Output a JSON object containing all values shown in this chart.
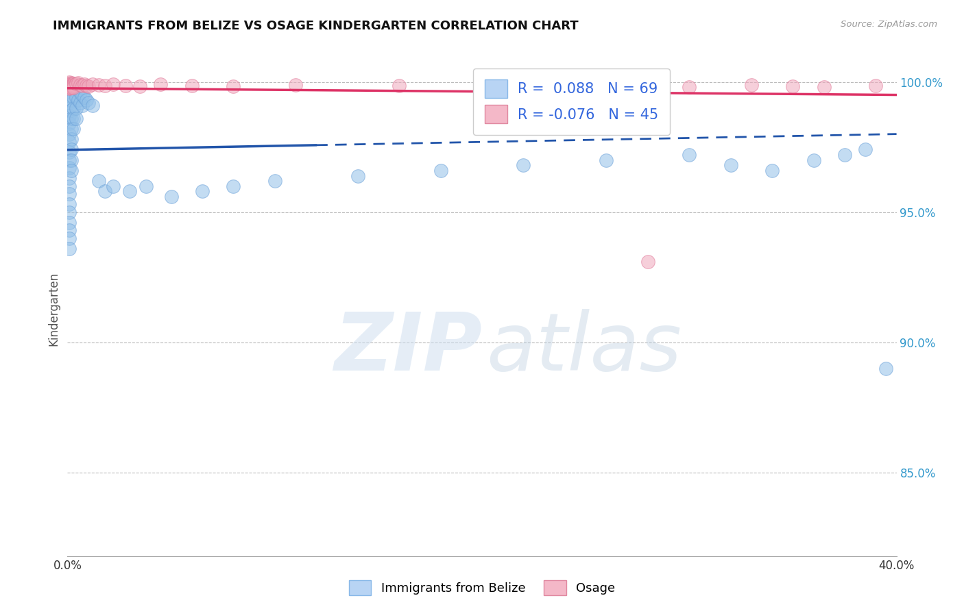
{
  "title": "IMMIGRANTS FROM BELIZE VS OSAGE KINDERGARTEN CORRELATION CHART",
  "source_text": "Source: ZipAtlas.com",
  "ylabel": "Kindergarten",
  "x_min": 0.0,
  "x_max": 0.4,
  "y_min": 0.818,
  "y_max": 1.008,
  "x_tick_positions": [
    0.0,
    0.4
  ],
  "x_tick_labels": [
    "0.0%",
    "40.0%"
  ],
  "y_tick_values": [
    0.85,
    0.9,
    0.95,
    1.0
  ],
  "y_tick_labels": [
    "85.0%",
    "90.0%",
    "95.0%",
    "100.0%"
  ],
  "blue_color": "#92c0e8",
  "blue_edge": "#6aa0d8",
  "pink_color": "#f0a8bc",
  "pink_edge": "#e07898",
  "blue_line_color": "#2255aa",
  "pink_line_color": "#dd3366",
  "blue_r": 0.088,
  "blue_n": 69,
  "pink_r": -0.076,
  "pink_n": 45,
  "legend_r_color": "#3366dd",
  "legend_n_color": "#3366dd",
  "background_color": "#ffffff",
  "blue_scatter_x": [
    0.001,
    0.001,
    0.001,
    0.001,
    0.001,
    0.001,
    0.001,
    0.001,
    0.001,
    0.001,
    0.001,
    0.001,
    0.001,
    0.001,
    0.001,
    0.001,
    0.001,
    0.001,
    0.001,
    0.001,
    0.002,
    0.002,
    0.002,
    0.002,
    0.002,
    0.002,
    0.002,
    0.002,
    0.002,
    0.002,
    0.003,
    0.003,
    0.003,
    0.003,
    0.003,
    0.004,
    0.004,
    0.004,
    0.004,
    0.005,
    0.005,
    0.006,
    0.006,
    0.007,
    0.007,
    0.008,
    0.009,
    0.01,
    0.012,
    0.015,
    0.018,
    0.022,
    0.03,
    0.038,
    0.05,
    0.065,
    0.08,
    0.1,
    0.14,
    0.18,
    0.22,
    0.26,
    0.3,
    0.32,
    0.34,
    0.36,
    0.375,
    0.385,
    0.395
  ],
  "blue_scatter_y": [
    0.998,
    0.995,
    0.992,
    0.99,
    0.987,
    0.984,
    0.98,
    0.977,
    0.973,
    0.97,
    0.967,
    0.963,
    0.96,
    0.957,
    0.953,
    0.95,
    0.946,
    0.943,
    0.94,
    0.936,
    0.999,
    0.996,
    0.993,
    0.989,
    0.986,
    0.982,
    0.978,
    0.974,
    0.97,
    0.966,
    0.997,
    0.994,
    0.99,
    0.986,
    0.982,
    0.998,
    0.994,
    0.99,
    0.986,
    0.997,
    0.993,
    0.996,
    0.992,
    0.995,
    0.991,
    0.994,
    0.993,
    0.992,
    0.991,
    0.962,
    0.958,
    0.96,
    0.958,
    0.96,
    0.956,
    0.958,
    0.96,
    0.962,
    0.964,
    0.966,
    0.968,
    0.97,
    0.972,
    0.968,
    0.966,
    0.97,
    0.972,
    0.974,
    0.89
  ],
  "pink_scatter_x": [
    0.001,
    0.001,
    0.001,
    0.001,
    0.001,
    0.001,
    0.001,
    0.001,
    0.001,
    0.001,
    0.002,
    0.002,
    0.002,
    0.002,
    0.002,
    0.003,
    0.003,
    0.003,
    0.003,
    0.004,
    0.005,
    0.006,
    0.007,
    0.008,
    0.009,
    0.01,
    0.012,
    0.015,
    0.018,
    0.022,
    0.028,
    0.035,
    0.045,
    0.06,
    0.08,
    0.11,
    0.16,
    0.2,
    0.25,
    0.3,
    0.33,
    0.35,
    0.365,
    0.28,
    0.39
  ],
  "pink_scatter_y": [
    0.9995,
    0.999,
    0.9985,
    0.998,
    0.9998,
    0.9992,
    0.9988,
    0.9983,
    0.9978,
    0.9975,
    0.9996,
    0.9991,
    0.9987,
    0.9982,
    0.9977,
    0.9994,
    0.9989,
    0.9984,
    0.9979,
    0.9993,
    0.9997,
    0.9988,
    0.9985,
    0.9991,
    0.9986,
    0.9983,
    0.999,
    0.9988,
    0.9985,
    0.9991,
    0.9987,
    0.9984,
    0.999,
    0.9985,
    0.9982,
    0.9988,
    0.9985,
    0.9988,
    0.9984,
    0.998,
    0.9988,
    0.9984,
    0.9981,
    0.931,
    0.9985
  ],
  "bottom_legend_labels": [
    "Immigrants from Belize",
    "Osage"
  ],
  "solid_line_end": 0.12
}
